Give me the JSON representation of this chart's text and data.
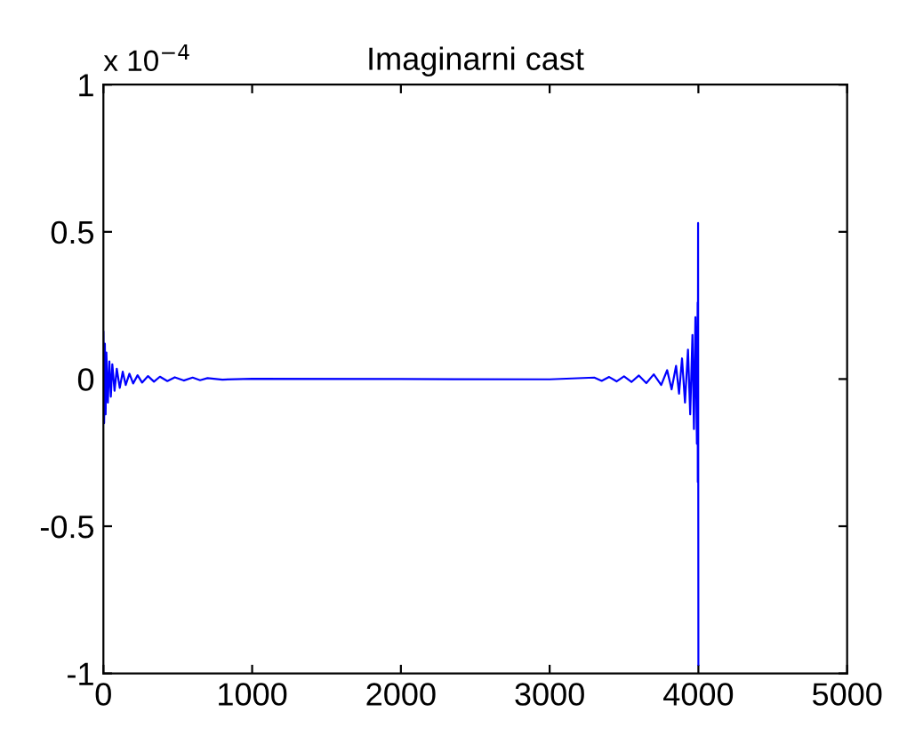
{
  "chart_data": {
    "type": "line",
    "title": "Imaginarni cast",
    "annotations": [
      "x 10$^{−4}$"
    ],
    "series": [
      {
        "color": "#0000ff",
        "x": [
          0,
          5,
          10,
          15,
          20,
          30,
          40,
          50,
          60,
          75,
          90,
          110,
          130,
          150,
          175,
          200,
          230,
          260,
          300,
          340,
          380,
          430,
          480,
          540,
          600,
          650,
          700,
          800,
          1000,
          2000,
          3000,
          3300,
          3350,
          3400,
          3450,
          3500,
          3550,
          3600,
          3650,
          3700,
          3750,
          3790,
          3820,
          3850,
          3870,
          3890,
          3910,
          3930,
          3945,
          3960,
          3970,
          3980,
          3990,
          3995,
          3996,
          3998,
          4000
        ],
        "values": [
          0.16,
          -0.15,
          0.12,
          -0.12,
          0.09,
          -0.08,
          0.06,
          -0.06,
          0.05,
          -0.04,
          0.035,
          -0.03,
          0.025,
          -0.02,
          0.018,
          -0.015,
          0.013,
          -0.012,
          0.01,
          -0.009,
          0.008,
          -0.007,
          0.006,
          -0.005,
          0.005,
          -0.004,
          0.003,
          -0.002,
          0.001,
          0,
          -0.001,
          0.005,
          -0.006,
          0.007,
          -0.008,
          0.009,
          -0.01,
          0.012,
          -0.014,
          0.016,
          -0.02,
          0.03,
          -0.035,
          0.045,
          -0.05,
          0.07,
          -0.08,
          0.1,
          -0.12,
          0.15,
          -0.17,
          0.21,
          -0.22,
          0.26,
          -0.35,
          0.53,
          -0.97
        ]
      }
    ],
    "xlim": [
      0,
      5000
    ],
    "xticks": [
      0,
      1000,
      2000,
      3000,
      4000,
      5000
    ],
    "ylim": [
      -1,
      1
    ],
    "yticks": [
      -1,
      -0.5,
      0,
      0.5,
      1
    ],
    "grid": false,
    "legend": false,
    "marker": "none",
    "line_style": "solid"
  }
}
